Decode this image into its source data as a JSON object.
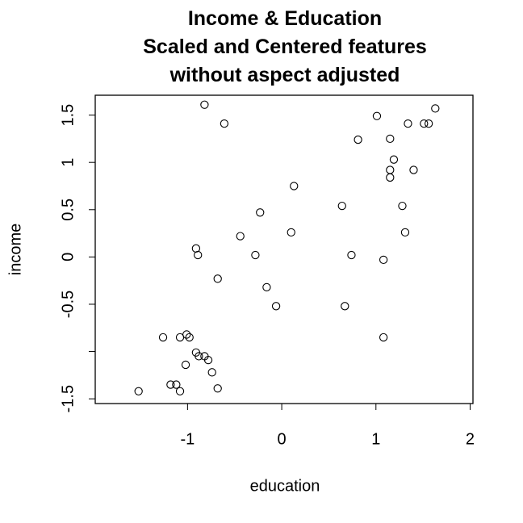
{
  "chart_data": {
    "type": "scatter",
    "title": "Income & Education\nScaled and Centered features\nwithout aspect adjusted",
    "x_label": "education",
    "y_label": "income",
    "xlim": [
      -1.98,
      2.03
    ],
    "ylim": [
      -1.55,
      1.71
    ],
    "xticks": [
      -1,
      0,
      1,
      2
    ],
    "yticks": [
      -1.5,
      {
        "value": -1,
        "label": null
      },
      -0.5,
      0.0,
      0.5,
      1.0,
      1.5
    ],
    "color": "#000000",
    "x": [
      -0.82,
      -0.61,
      1.01,
      1.63,
      1.34,
      1.51,
      1.56,
      0.81,
      1.15,
      1.19,
      1.15,
      1.4,
      1.15,
      0.13,
      0.64,
      1.28,
      -0.23,
      1.31,
      0.1,
      -0.44,
      -0.91,
      -0.89,
      -0.28,
      0.74,
      1.08,
      -0.68,
      -0.16,
      -0.06,
      0.67,
      1.08,
      -1.26,
      -1.08,
      -1.01,
      -0.98,
      -0.91,
      -0.88,
      -0.82,
      -0.78,
      -1.02,
      -0.74,
      -1.18,
      -1.12,
      -1.08,
      -0.68,
      -1.52
    ],
    "y": [
      1.61,
      1.41,
      1.49,
      1.57,
      1.41,
      1.41,
      1.41,
      1.24,
      1.25,
      1.03,
      0.92,
      0.92,
      0.84,
      0.75,
      0.54,
      0.54,
      0.47,
      0.26,
      0.26,
      0.22,
      0.09,
      0.02,
      0.02,
      0.02,
      -0.03,
      -0.23,
      -0.32,
      -0.52,
      -0.52,
      -0.85,
      -0.85,
      -0.85,
      -0.82,
      -0.85,
      -1.01,
      -1.05,
      -1.05,
      -1.09,
      -1.14,
      -1.22,
      -1.35,
      -1.35,
      -1.42,
      -1.39,
      -1.42
    ]
  }
}
